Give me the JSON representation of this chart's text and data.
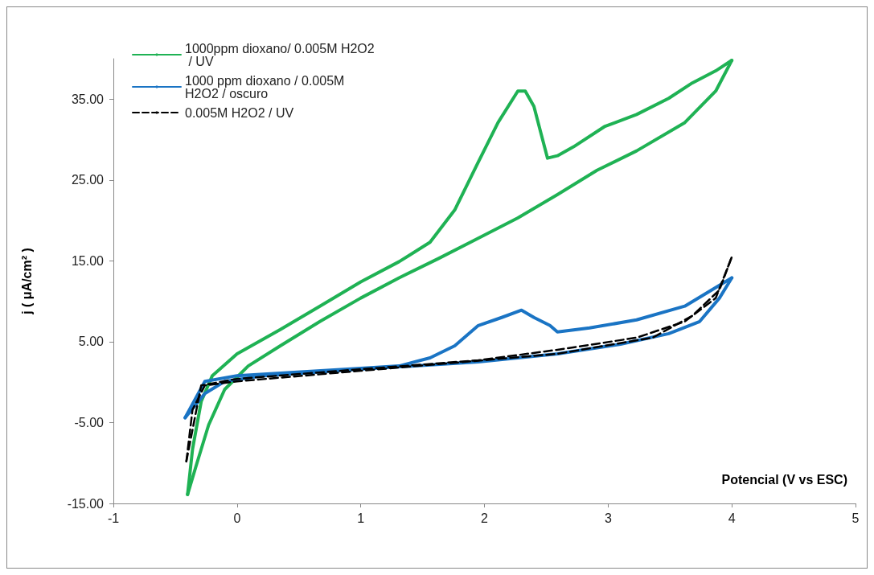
{
  "chart_data": {
    "type": "line",
    "xlabel": "Potencial (V vs ESC)",
    "ylabel": "j ( μA/cm² )",
    "xlim": [
      -1,
      5
    ],
    "xticks": [
      -1,
      0,
      1,
      2,
      3,
      4,
      5
    ],
    "ylim": [
      -15,
      40
    ],
    "yticks": [
      {
        "value": -15,
        "label": "-15.00"
      },
      {
        "value": -5,
        "label": "-5.00"
      },
      {
        "value": 5,
        "label": "5.00"
      },
      {
        "value": 15,
        "label": "15.00"
      },
      {
        "value": 25,
        "label": "25.00"
      },
      {
        "value": 35,
        "label": "35.00"
      }
    ],
    "legend": "top left",
    "marker": "none",
    "series": [
      {
        "name": "1000ppm dioxano/ 0.005M H2O2 / UV",
        "color": "#1fb254",
        "line_style": "solid",
        "x": [
          -0.4,
          -0.36,
          -0.29,
          -0.2,
          0,
          0.35,
          0.67,
          1,
          1.31,
          1.56,
          1.76,
          1.95,
          2.11,
          2.27,
          2.33,
          2.4,
          2.46,
          2.51,
          2.59,
          2.72,
          2.97,
          3.23,
          3.49,
          3.68,
          3.87,
          4
        ],
        "values": [
          -13.9,
          -8.3,
          -2.4,
          0.8,
          3.5,
          6.5,
          9.4,
          12.4,
          14.9,
          17.3,
          21.3,
          27.2,
          32.1,
          36,
          36,
          34.1,
          30.6,
          27.7,
          28,
          29.1,
          31.6,
          33.1,
          35.1,
          37,
          38.5,
          39.8
        ]
      },
      {
        "color": "#1fb254",
        "line_style": "solid",
        "x": [
          -0.4,
          -0.33,
          -0.23,
          -0.1,
          0.09,
          0.35,
          0.67,
          1,
          1.31,
          1.63,
          1.95,
          2.27,
          2.59,
          2.91,
          3.23,
          3.62,
          3.87,
          4
        ],
        "values": [
          -13.9,
          -10.3,
          -5.3,
          -0.9,
          2,
          4.5,
          7.5,
          10.4,
          12.9,
          15.3,
          17.8,
          20.3,
          23.2,
          26.2,
          28.6,
          32.1,
          36,
          39.8
        ]
      },
      {
        "name": "1000 ppm dioxano / 0.005M H2O2 / oscuro",
        "color": "#1a74c4",
        "line_style": "solid",
        "x": [
          -0.42,
          -0.26,
          0,
          1,
          1.31,
          1.56,
          1.76,
          1.95,
          2.14,
          2.3,
          2.4,
          2.53,
          2.59,
          2.85,
          3.23,
          3.62,
          4
        ],
        "values": [
          -4.4,
          0.1,
          0.8,
          1.7,
          2,
          3,
          4.5,
          7,
          8,
          8.9,
          8,
          7,
          6.2,
          6.7,
          7.7,
          9.4,
          12.9
        ]
      },
      {
        "color": "#1a74c4",
        "line_style": "solid",
        "x": [
          -0.42,
          -0.26,
          -0.1,
          0.22,
          1,
          1.95,
          2.59,
          3.1,
          3.49,
          3.74,
          3.9,
          4
        ],
        "values": [
          -4.4,
          -1.4,
          0.1,
          0.8,
          1.6,
          2.5,
          3.5,
          4.7,
          6,
          7.5,
          10.4,
          12.9
        ]
      },
      {
        "name": "0.005M H2O2 / UV",
        "color": "#000000",
        "line_style": "dashed",
        "x": [
          -0.41,
          -0.29,
          0,
          1,
          1.95,
          2.59,
          3.23,
          3.62,
          3.87,
          4
        ],
        "values": [
          -9.8,
          -0.4,
          0.4,
          1.6,
          2.7,
          4,
          5.5,
          7.5,
          10.4,
          15.5
        ]
      },
      {
        "color": "#000000",
        "line_style": "dashed",
        "x": [
          -0.41,
          -0.36,
          -0.26,
          0,
          1,
          2.59,
          3.36,
          3.68,
          3.9,
          4
        ],
        "values": [
          -9.8,
          -3.4,
          -0.4,
          0.1,
          1.4,
          3.5,
          5.5,
          8.2,
          11.4,
          15.5
        ]
      }
    ]
  }
}
